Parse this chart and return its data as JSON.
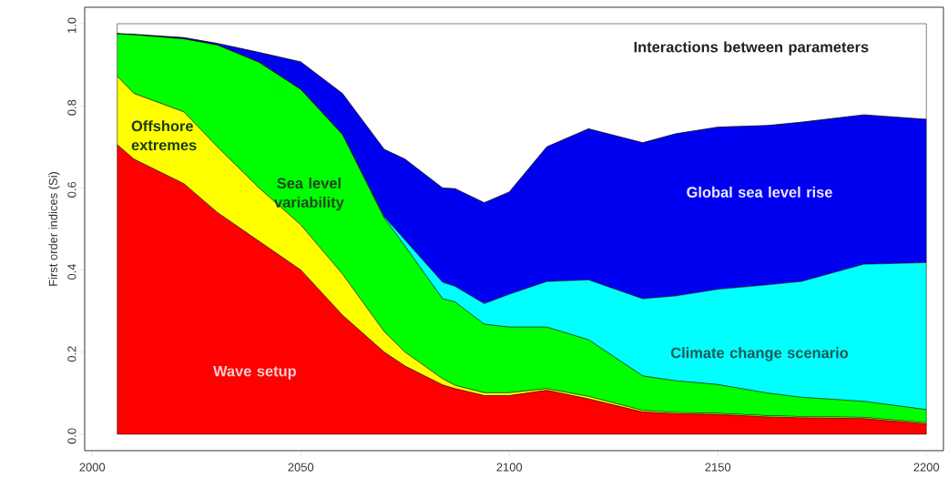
{
  "chart_data": {
    "type": "area",
    "stacked": true,
    "ylabel": "First order indices (Si)",
    "x": [
      2006,
      2010,
      2022,
      2030,
      2040,
      2050,
      2060,
      2070,
      2075,
      2084,
      2087,
      2094,
      2100,
      2109,
      2119,
      2132,
      2140,
      2150,
      2162,
      2170,
      2185,
      2200
    ],
    "series": [
      {
        "name": "Wave setup",
        "color": "#ff0000",
        "values": [
          0.705,
          0.67,
          0.61,
          0.54,
          0.47,
          0.4,
          0.29,
          0.2,
          0.166,
          0.12,
          0.111,
          0.094,
          0.094,
          0.107,
          0.086,
          0.054,
          0.05,
          0.048,
          0.042,
          0.04,
          0.038,
          0.025
        ]
      },
      {
        "name": "Offshore extremes",
        "color": "#ffff00",
        "values": [
          0.167,
          0.16,
          0.175,
          0.16,
          0.13,
          0.11,
          0.1,
          0.05,
          0.034,
          0.015,
          0.008,
          0.007,
          0.007,
          0.004,
          0.006,
          0.004,
          0.003,
          0.003,
          0.003,
          0.003,
          0.003,
          0.003
        ]
      },
      {
        "name": "Sea level variability",
        "color": "#00ff00",
        "values": [
          0.103,
          0.143,
          0.178,
          0.248,
          0.306,
          0.33,
          0.34,
          0.277,
          0.258,
          0.195,
          0.203,
          0.167,
          0.16,
          0.15,
          0.138,
          0.084,
          0.077,
          0.07,
          0.055,
          0.047,
          0.039,
          0.032
        ]
      },
      {
        "name": "Climate change scenario",
        "color": "#00ffff",
        "values": [
          0,
          0,
          0,
          0,
          0,
          0,
          0,
          0.003,
          0.015,
          0.04,
          0.038,
          0.05,
          0.08,
          0.111,
          0.146,
          0.188,
          0.207,
          0.232,
          0.264,
          0.282,
          0.334,
          0.358
        ]
      },
      {
        "name": "Global sea level rise",
        "color": "#0000f0",
        "values": [
          0.001,
          0.001,
          0.003,
          0.004,
          0.024,
          0.067,
          0.1,
          0.164,
          0.197,
          0.23,
          0.238,
          0.246,
          0.249,
          0.328,
          0.368,
          0.38,
          0.395,
          0.395,
          0.388,
          0.388,
          0.364,
          0.349
        ]
      },
      {
        "name": "Interactions between parameters",
        "color": "#ffffff",
        "values": [
          0.024,
          0.026,
          0.034,
          0.048,
          0.07,
          0.093,
          0.17,
          0.306,
          0.33,
          0.4,
          0.402,
          0.436,
          0.41,
          0.3,
          0.256,
          0.29,
          0.268,
          0.252,
          0.248,
          0.24,
          0.222,
          0.233
        ]
      }
    ],
    "xlim": [
      1998.2,
      2204.1
    ],
    "ylim": [
      -0.04,
      1.04
    ],
    "xticks": [
      2000,
      2050,
      2100,
      2150,
      2200
    ],
    "yticks": [
      {
        "value": 0,
        "label": "0.0"
      },
      0.2,
      0.4,
      0.6,
      0.8,
      {
        "value": 1,
        "label": "1.0"
      }
    ]
  }
}
